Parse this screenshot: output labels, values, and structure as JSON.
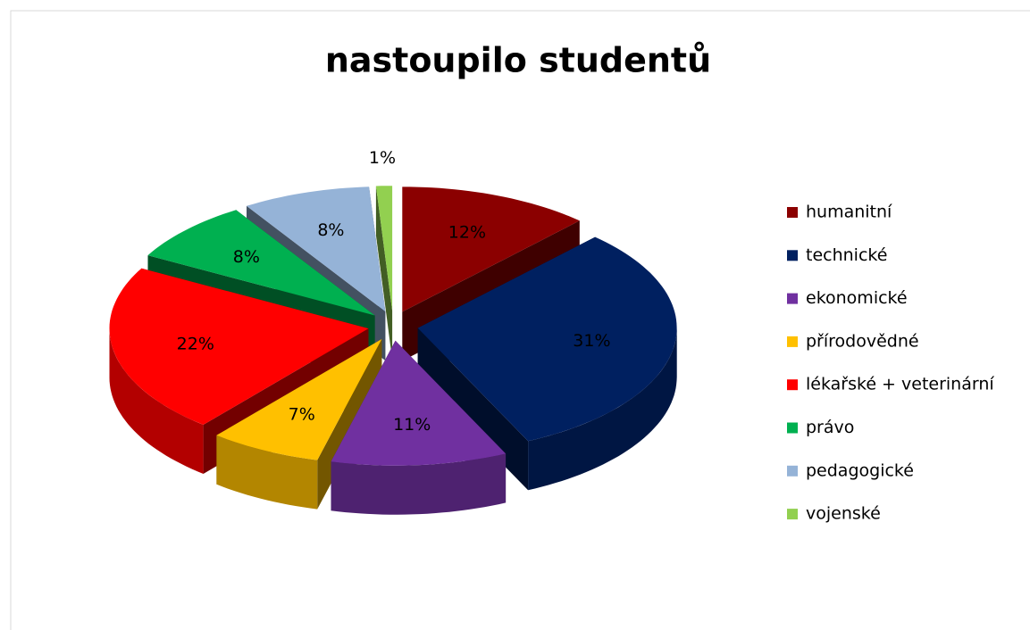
{
  "chart_data": {
    "type": "pie",
    "title": "nastoupilo studentů",
    "categories": [
      "humanitní",
      "technické",
      "ekonomické",
      "přírodovědné",
      "lékařské + veterinární",
      "právo",
      "pedagogické",
      "vojenské"
    ],
    "values": [
      12,
      31,
      11,
      7,
      22,
      8,
      8,
      1
    ],
    "value_labels": [
      "12%",
      "31%",
      "11%",
      "7%",
      "22%",
      "8%",
      "8%",
      "1%"
    ],
    "colors": [
      "#8b0000",
      "#002060",
      "#7030a0",
      "#ffc000",
      "#ff0000",
      "#00b050",
      "#95b3d7",
      "#92d050"
    ],
    "legend": "right"
  }
}
